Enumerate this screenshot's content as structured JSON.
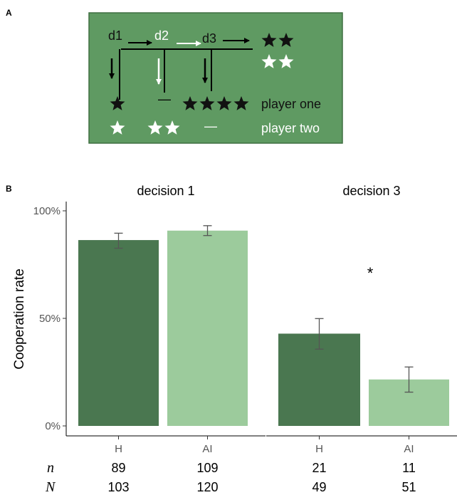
{
  "panel_a": {
    "letter": "A",
    "background": "#5f9a62",
    "border": "#3e6e41",
    "decisions": [
      "d1",
      "d2",
      "d3"
    ],
    "player_one_label": "player one",
    "player_two_label": "player two",
    "dash": "—",
    "player_one_color": "#111111",
    "player_two_color": "#ffffff"
  },
  "panel_b": {
    "letter": "B",
    "ylabel": "Cooperation rate",
    "significance": "*",
    "colors": {
      "H": "#4a7750",
      "AI": "#9ccb9c"
    },
    "row_labels": {
      "n": "n",
      "N": "N"
    }
  },
  "chart_data": {
    "type": "bar",
    "ylabel": "Cooperation rate",
    "ylim": [
      0,
      100
    ],
    "yticks": [
      "0%",
      "50%",
      "100%"
    ],
    "ytick_values": [
      0,
      50,
      100
    ],
    "grid": false,
    "facets": [
      {
        "title": "decision 1",
        "categories": [
          "H",
          "AI"
        ],
        "values": [
          86.4,
          90.8
        ],
        "error_low": [
          82.6,
          88.5
        ],
        "error_high": [
          89.6,
          93.1
        ],
        "n": [
          "89",
          "109"
        ],
        "N": [
          "103",
          "120"
        ]
      },
      {
        "title": "decision 3",
        "categories": [
          "H",
          "AI"
        ],
        "values": [
          42.9,
          21.6
        ],
        "error_low": [
          35.7,
          15.7
        ],
        "error_high": [
          49.9,
          27.4
        ],
        "n": [
          "21",
          "11"
        ],
        "N": [
          "49",
          "51"
        ]
      }
    ]
  }
}
